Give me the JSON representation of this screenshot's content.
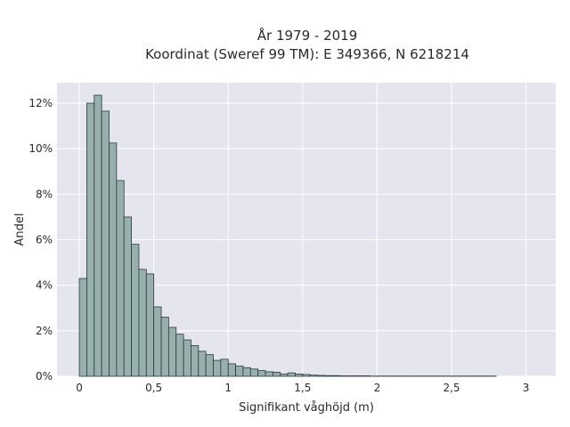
{
  "chart_data": {
    "type": "bar",
    "title_line1": "År 1979 - 2019",
    "title_line2": "Koordinat (Sweref 99 TM): E 349366, N 6218214",
    "xlabel": "Signifikant våghöjd (m)",
    "ylabel": "Andel",
    "xlim": [
      -0.15,
      3.2
    ],
    "ylim": [
      0,
      12.9
    ],
    "bin_start": 0,
    "bin_width": 0.05,
    "x_ticks": [
      {
        "value": 0,
        "label": "0"
      },
      {
        "value": 0.5,
        "label": "0,5"
      },
      {
        "value": 1,
        "label": "1"
      },
      {
        "value": 1.5,
        "label": "1,5"
      },
      {
        "value": 2,
        "label": "2"
      },
      {
        "value": 2.5,
        "label": "2,5"
      },
      {
        "value": 3,
        "label": "3"
      }
    ],
    "y_ticks": [
      {
        "value": 0,
        "label": "0%"
      },
      {
        "value": 2,
        "label": "2%"
      },
      {
        "value": 4,
        "label": "4%"
      },
      {
        "value": 6,
        "label": "6%"
      },
      {
        "value": 8,
        "label": "8%"
      },
      {
        "value": 10,
        "label": "10%"
      },
      {
        "value": 12,
        "label": "12%"
      }
    ],
    "values": [
      4.3,
      12.0,
      12.35,
      11.65,
      10.25,
      8.6,
      7.0,
      5.8,
      4.7,
      4.5,
      3.05,
      2.6,
      2.15,
      1.85,
      1.6,
      1.35,
      1.1,
      0.95,
      0.7,
      0.75,
      0.55,
      0.45,
      0.38,
      0.32,
      0.25,
      0.2,
      0.18,
      0.1,
      0.15,
      0.1,
      0.08,
      0.05,
      0.04,
      0.03,
      0.03,
      0.02,
      0.02,
      0.02,
      0.02,
      0.01,
      0.01,
      0.01,
      0.01,
      0.01,
      0.01,
      0.01,
      0.01,
      0.01,
      0.01,
      0.01,
      0.01,
      0.01,
      0.01,
      0.01,
      0.01,
      0.01
    ],
    "grid": true,
    "legend": "none",
    "colors": {
      "bar_fill": "#98b0ad",
      "bar_stroke": "#2b3a3a",
      "plot_bg": "#e5e5ef",
      "grid": "#ffffff"
    }
  }
}
